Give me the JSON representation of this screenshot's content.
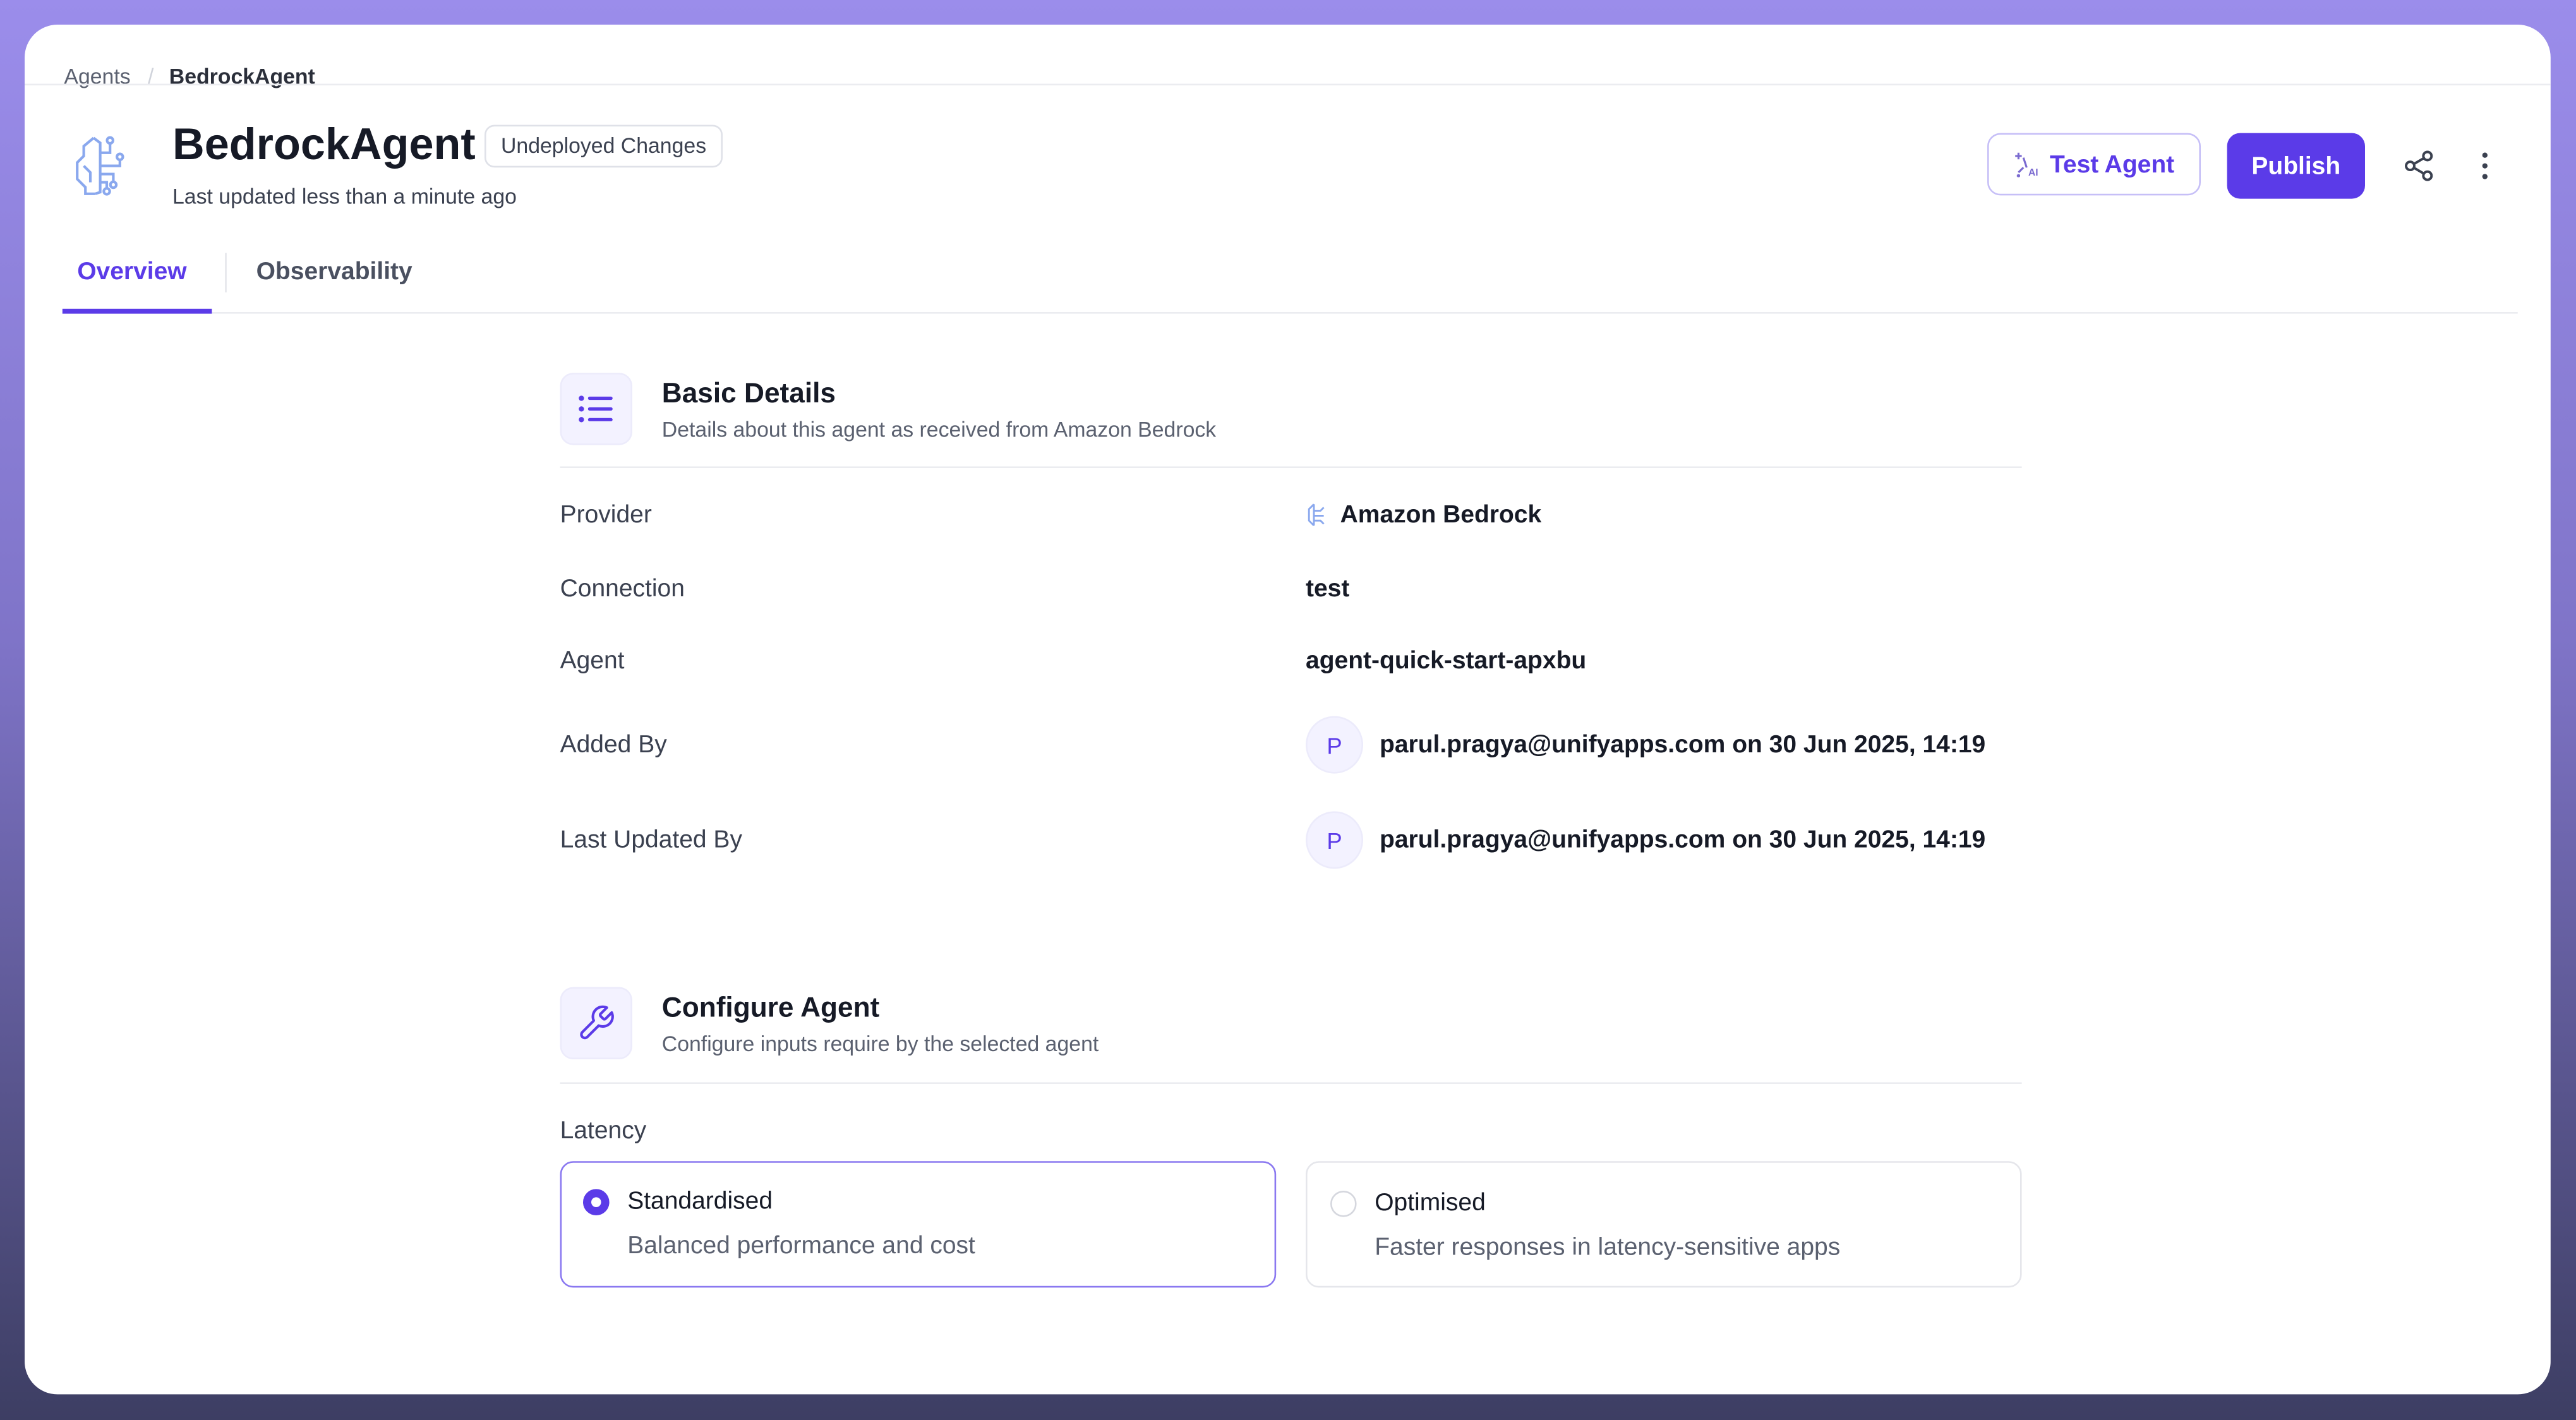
{
  "breadcrumb": {
    "parent": "Agents",
    "current": "BedrockAgent"
  },
  "header": {
    "title": "BedrockAgent",
    "badge": "Undeployed Changes",
    "subtitle": "Last updated less than a minute ago",
    "test_button": "Test Agent",
    "publish_button": "Publish",
    "icons": [
      "brain-circuit-icon",
      "sparkle-ai-icon",
      "share-icon",
      "more-vertical-icon"
    ]
  },
  "tabs": [
    {
      "label": "Overview",
      "active": true
    },
    {
      "label": "Observability",
      "active": false
    }
  ],
  "basic": {
    "title": "Basic Details",
    "subtitle": "Details about this agent as received from Amazon Bedrock",
    "rows": [
      {
        "label": "Provider",
        "value": "Amazon Bedrock"
      },
      {
        "label": "Connection",
        "value": "test"
      },
      {
        "label": "Agent",
        "value": "agent-quick-start-apxbu"
      },
      {
        "label": "Added By",
        "avatar": "P",
        "value": "parul.pragya@unifyapps.com",
        "suffix": "on 30 Jun 2025, 14:19"
      },
      {
        "label": "Last Updated By",
        "avatar": "P",
        "value": "parul.pragya@unifyapps.com",
        "suffix": "on 30 Jun 2025, 14:19"
      }
    ]
  },
  "configure": {
    "title": "Configure Agent",
    "subtitle": "Configure inputs require by the selected agent",
    "latency_label": "Latency",
    "options": [
      {
        "title": "Standardised",
        "description": "Balanced performance and cost",
        "selected": true
      },
      {
        "title": "Optimised",
        "description": "Faster responses in latency-sensitive apps",
        "selected": false
      }
    ]
  },
  "colors": {
    "accent": "#5b3be8",
    "text": "#161a26",
    "muted": "#5b6170"
  }
}
